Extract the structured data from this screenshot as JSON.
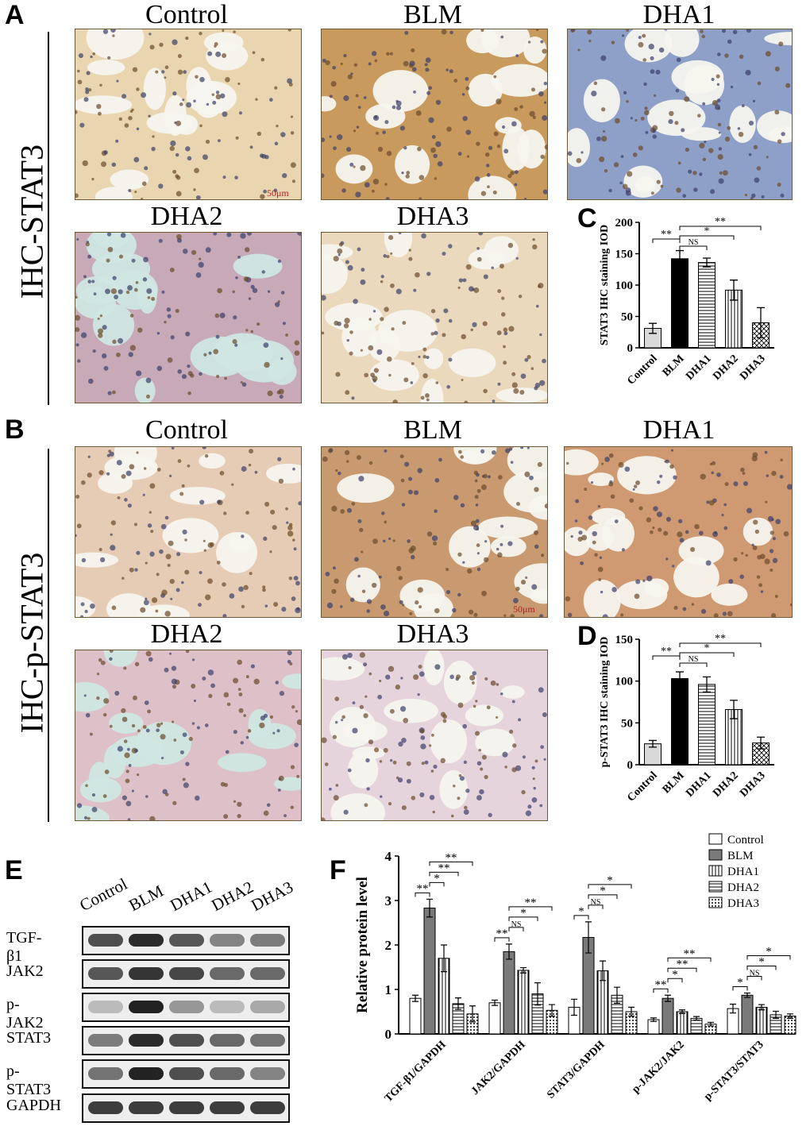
{
  "figure": {
    "panel_letters": [
      "A",
      "B",
      "C",
      "D",
      "E",
      "F"
    ],
    "side_labels": {
      "A": "IHC-STAT3",
      "B": "IHC-p-STAT3"
    },
    "image_titles": {
      "A": [
        "Control",
        "BLM",
        "DHA1",
        "DHA2",
        "DHA3"
      ],
      "B": [
        "Control",
        "BLM",
        "DHA1",
        "DHA2",
        "DHA3"
      ]
    },
    "scale_bar_label": "50μm",
    "micrograph_tones": {
      "A": [
        "#e9d6b0",
        "#c99a5e",
        "#8fa0c8",
        "#c7a9b8",
        "#ead9bd"
      ],
      "B": [
        "#e6ccb5",
        "#c99a70",
        "#cf9a72",
        "#dec0c8",
        "#e6d4dd"
      ]
    },
    "western_blot": {
      "lanes": [
        "Control",
        "BLM",
        "DHA1",
        "DHA2",
        "DHA3"
      ],
      "rows": [
        {
          "label": "TGF-β1",
          "intensity": [
            0.75,
            0.95,
            0.7,
            0.45,
            0.5
          ]
        },
        {
          "label": "JAK2",
          "intensity": [
            0.7,
            0.9,
            0.8,
            0.6,
            0.6
          ]
        },
        {
          "label": "p-JAK2",
          "intensity": [
            0.15,
            1.0,
            0.35,
            0.15,
            0.25
          ]
        },
        {
          "label": "STAT3",
          "intensity": [
            0.5,
            0.95,
            0.75,
            0.6,
            0.55
          ]
        },
        {
          "label": "p-STAT3",
          "intensity": [
            0.55,
            1.0,
            0.75,
            0.6,
            0.45
          ]
        },
        {
          "label": "GAPDH",
          "intensity": [
            0.85,
            0.85,
            0.85,
            0.85,
            0.85
          ]
        }
      ]
    }
  },
  "chart_data": [
    {
      "panel": "C",
      "type": "bar",
      "categories": [
        "Control",
        "BLM",
        "DHA1",
        "DHA2",
        "DHA3"
      ],
      "values": [
        31,
        142,
        136,
        92,
        40
      ],
      "errors": [
        8,
        13,
        7,
        16,
        24
      ],
      "ylabel": "STAT3 IHC staining IOD",
      "ylim": [
        0,
        200
      ],
      "yticks": [
        0,
        50,
        100,
        150,
        200
      ],
      "bar_fills": [
        "#d9d9d9",
        "#000000",
        "hlines",
        "vlines",
        "cross"
      ],
      "significance": [
        {
          "from": 0,
          "to": 1,
          "label": "**"
        },
        {
          "from": 1,
          "to": 2,
          "label": "NS"
        },
        {
          "from": 1,
          "to": 3,
          "label": "*"
        },
        {
          "from": 1,
          "to": 4,
          "label": "**"
        }
      ]
    },
    {
      "panel": "D",
      "type": "bar",
      "categories": [
        "Control",
        "BLM",
        "DHA1",
        "DHA2",
        "DHA3"
      ],
      "values": [
        25,
        103,
        96,
        66,
        26
      ],
      "errors": [
        4,
        8,
        9,
        11,
        7
      ],
      "ylabel": "p-STAT3 IHC staining IOD",
      "ylim": [
        0,
        150
      ],
      "yticks": [
        0,
        50,
        100,
        150
      ],
      "bar_fills": [
        "#d9d9d9",
        "#000000",
        "hlines",
        "vlines",
        "cross"
      ],
      "significance": [
        {
          "from": 0,
          "to": 1,
          "label": "**"
        },
        {
          "from": 1,
          "to": 2,
          "label": "NS"
        },
        {
          "from": 1,
          "to": 3,
          "label": "*"
        },
        {
          "from": 1,
          "to": 4,
          "label": "**"
        }
      ]
    },
    {
      "panel": "F",
      "type": "bar",
      "categories": [
        "TGF-β1/GAPDH",
        "JAK2/GAPDH",
        "STAT3/GAPDH",
        "p-JAK2/JAK2",
        "p-STAT3/STAT3"
      ],
      "series": [
        {
          "name": "Control",
          "values": [
            0.8,
            0.7,
            0.6,
            0.32,
            0.57
          ],
          "errors": [
            0.07,
            0.06,
            0.18,
            0.04,
            0.1
          ]
        },
        {
          "name": "BLM",
          "values": [
            2.83,
            1.85,
            2.17,
            0.8,
            0.87
          ],
          "errors": [
            0.2,
            0.17,
            0.35,
            0.07,
            0.05
          ]
        },
        {
          "name": "DHA1",
          "values": [
            1.7,
            1.43,
            1.42,
            0.5,
            0.6
          ],
          "errors": [
            0.3,
            0.06,
            0.22,
            0.04,
            0.06
          ]
        },
        {
          "name": "DHA2",
          "values": [
            0.68,
            0.9,
            0.87,
            0.35,
            0.43
          ],
          "errors": [
            0.13,
            0.25,
            0.18,
            0.04,
            0.08
          ]
        },
        {
          "name": "DHA3",
          "values": [
            0.45,
            0.53,
            0.5,
            0.22,
            0.4
          ],
          "errors": [
            0.18,
            0.13,
            0.1,
            0.04,
            0.05
          ]
        }
      ],
      "ylabel": "Relative protein level",
      "ylim": [
        0,
        4
      ],
      "yticks": [
        0,
        1,
        2,
        3,
        4
      ],
      "legend_position": "top-right",
      "significance": [
        [
          {
            "from": 0,
            "to": 1,
            "label": "**"
          },
          {
            "from": 1,
            "to": 2,
            "label": "*"
          },
          {
            "from": 1,
            "to": 3,
            "label": "**"
          },
          {
            "from": 1,
            "to": 4,
            "label": "**"
          }
        ],
        [
          {
            "from": 0,
            "to": 1,
            "label": "**"
          },
          {
            "from": 1,
            "to": 2,
            "label": "NS"
          },
          {
            "from": 1,
            "to": 3,
            "label": "*"
          },
          {
            "from": 1,
            "to": 4,
            "label": "**"
          }
        ],
        [
          {
            "from": 0,
            "to": 1,
            "label": "*"
          },
          {
            "from": 1,
            "to": 2,
            "label": "NS"
          },
          {
            "from": 1,
            "to": 3,
            "label": "*"
          },
          {
            "from": 1,
            "to": 4,
            "label": "*"
          }
        ],
        [
          {
            "from": 0,
            "to": 1,
            "label": "**"
          },
          {
            "from": 1,
            "to": 2,
            "label": "*"
          },
          {
            "from": 1,
            "to": 3,
            "label": "**"
          },
          {
            "from": 1,
            "to": 4,
            "label": "**"
          }
        ],
        [
          {
            "from": 0,
            "to": 1,
            "label": "*"
          },
          {
            "from": 1,
            "to": 2,
            "label": "NS"
          },
          {
            "from": 1,
            "to": 3,
            "label": "*"
          },
          {
            "from": 1,
            "to": 4,
            "label": "*"
          }
        ]
      ]
    }
  ]
}
